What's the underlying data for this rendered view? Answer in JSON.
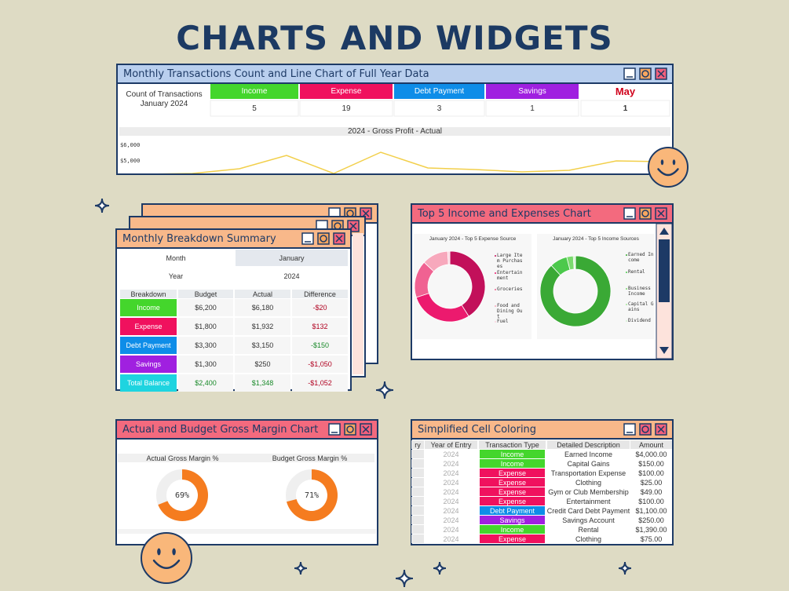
{
  "header": {
    "title": "CHARTS AND WIDGETS"
  },
  "transactions_panel": {
    "title": "Monthly Transactions Count and Line Chart of Full Year Data",
    "count_label": [
      "Count of Transactions",
      "January 2024"
    ],
    "categories": [
      "Income",
      "Expense",
      "Debt Payment",
      "Savings",
      "May"
    ],
    "colors": [
      "#44d62c",
      "#f0115e",
      "#0e8de8",
      "#a020e0",
      "#ffffff"
    ],
    "counts": [
      5,
      19,
      3,
      1,
      1
    ],
    "line_chart": {
      "type": "line",
      "title": "2024 - Gross Profit - Actual",
      "ylim": [
        4000,
        6500
      ],
      "yticks": [
        {
          "value": 6000,
          "label": "$6,000"
        },
        {
          "value": 5000,
          "label": "$5,000"
        }
      ],
      "values": [
        4150,
        4200,
        4500,
        5350,
        4200,
        5550,
        4550,
        4450,
        4300,
        4400,
        5000,
        4950
      ],
      "color": "#f2cf4a"
    }
  },
  "breakdown": {
    "title": "Monthly Breakdown Summary",
    "month_label": "Month",
    "month": "January",
    "year_label": "Year",
    "year": "2024",
    "columns": [
      "Breakdown",
      "Budget",
      "Actual",
      "Difference"
    ],
    "rows": [
      [
        "Income",
        "$6,200",
        "$6,180",
        "-$20"
      ],
      [
        "Expense",
        "$1,800",
        "$1,932",
        "$132"
      ],
      [
        "Debt Payment",
        "$3,300",
        "$3,150",
        "-$150"
      ],
      [
        "Savings",
        "$1,300",
        "$250",
        "-$1,050"
      ],
      [
        "Total Balance",
        "$2,400",
        "$1,348",
        "-$1,052"
      ]
    ],
    "row_colors": [
      "#44d62c",
      "#f0115e",
      "#0e8de8",
      "#a020e0",
      "#1ed4e0"
    ],
    "text_colors": [
      [
        "#ffffff",
        "#333333",
        "#333333",
        "#b00020"
      ],
      [
        "#ffffff",
        "#333333",
        "#333333",
        "#b00020"
      ],
      [
        "#ffffff",
        "#333333",
        "#333333",
        "#1a8a2a"
      ],
      [
        "#ffffff",
        "#333333",
        "#333333",
        "#b00020"
      ],
      [
        "#ffffff",
        "#1a8a2a",
        "#1a8a2a",
        "#b00020"
      ]
    ]
  },
  "top5": {
    "title": "Top 5 Income and Expenses Chart",
    "charts": [
      {
        "type": "pie",
        "title": "January 2024 - Top 5 Expense Source",
        "categories": [
          "Large Item Purchases",
          "Entertainment",
          "Groceries",
          "Food and Dining Out",
          "Fuel"
        ],
        "values": [
          41,
          29,
          17,
          12,
          1
        ],
        "colors": [
          "#c2105a",
          "#ec1a6e",
          "#f06292",
          "#f7a8bc",
          "#fbd3de"
        ]
      },
      {
        "type": "pie",
        "title": "January 2024 - Top 5 Income Sources",
        "categories": [
          "Earned Income",
          "Rental",
          "Business Income",
          "Capital Gains",
          "Dividend"
        ],
        "values": [
          88,
          8,
          3,
          0.6,
          0.4
        ],
        "colors": [
          "#3aa935",
          "#4cc94c",
          "#7bdb6e",
          "#a8e79c",
          "#d2f0cf"
        ]
      }
    ]
  },
  "gross_margin": {
    "title": "Actual and Budget Gross Margin Chart",
    "charts": [
      {
        "type": "pie",
        "title": "Actual  Gross Margin %",
        "values": [
          69
        ],
        "value_labels": [
          "69%"
        ],
        "color": "#f57c1f"
      },
      {
        "type": "pie",
        "title": "Budget  Gross Margin %",
        "values": [
          71
        ],
        "value_labels": [
          "71%"
        ],
        "color": "#f57c1f"
      }
    ]
  },
  "cells": {
    "title": "Simplified Cell Coloring",
    "columns": [
      "ry",
      "Year of Entry",
      "Transaction Type",
      "Detailed Description",
      "Amount"
    ],
    "rows": [
      [
        "2024",
        "Income",
        "Earned Income",
        "$4,000.00"
      ],
      [
        "2024",
        "Income",
        "Capital Gains",
        "$150.00"
      ],
      [
        "2024",
        "Expense",
        "Transportation Expense",
        "$100.00"
      ],
      [
        "2024",
        "Expense",
        "Clothing",
        "$25.00"
      ],
      [
        "2024",
        "Expense",
        "Gym or Club Membership",
        "$49.00"
      ],
      [
        "2024",
        "Expense",
        "Entertainment",
        "$100.00"
      ],
      [
        "2024",
        "Debt Payment",
        "Credit Card Debt Payment",
        "$1,100.00"
      ],
      [
        "2024",
        "Savings",
        "Savings Account",
        "$250.00"
      ],
      [
        "2024",
        "Income",
        "Rental",
        "$1,390.00"
      ],
      [
        "2024",
        "Expense",
        "Clothing",
        "$75.00"
      ]
    ],
    "type_colors": [
      "#44d62c",
      "#44d62c",
      "#f0115e",
      "#f0115e",
      "#f0115e",
      "#f0115e",
      "#0e8de8",
      "#a020e0",
      "#44d62c",
      "#f0115e"
    ]
  }
}
